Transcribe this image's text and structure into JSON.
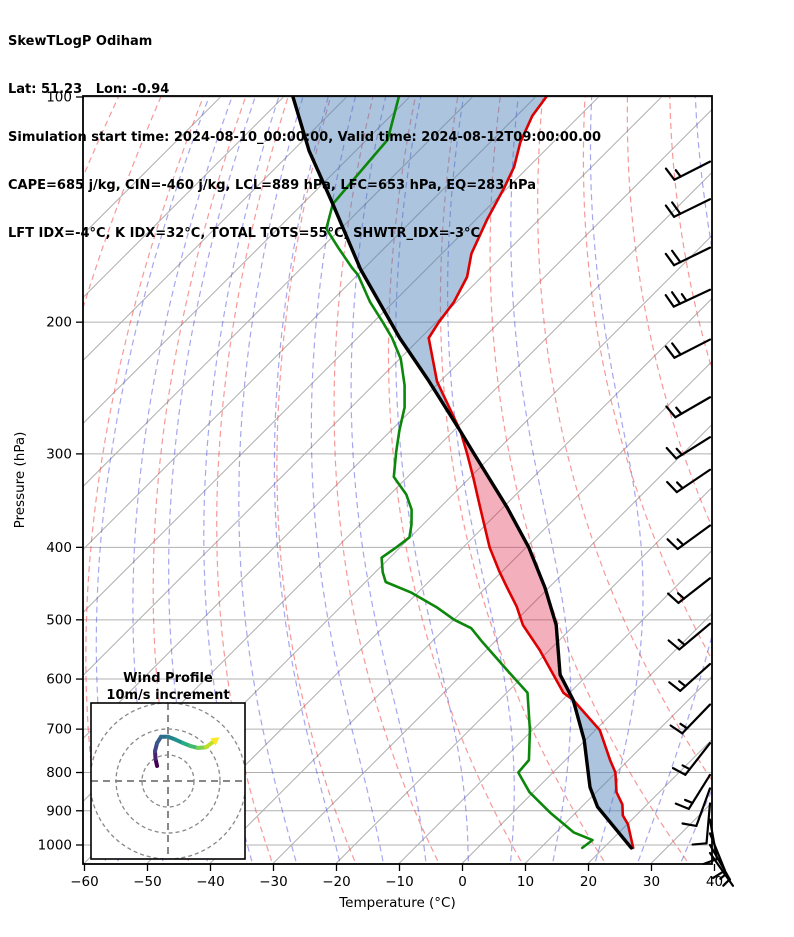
{
  "header": {
    "title": "SkewTLogP Odiham",
    "location_line": "Lat: 51.23   Lon: -0.94",
    "time_line": "Simulation start time: 2024-08-10_00:00:00, Valid time: 2024-08-12T09:00:00.00",
    "cape_line": "CAPE=685 j/kg, CIN=-460 j/kg, LCL=889 hPa, LFC=653 hPa, EQ=283 hPa",
    "indices_line": "LFT IDX=-4°C, K IDX=32°C, TOTAL TOTS=55°C, SHWTR_IDX=-3°C"
  },
  "chart_data": {
    "type": "skewt-logp",
    "title": "SkewTLogP Odiham",
    "location": {
      "lat": 51.23,
      "lon": -0.94
    },
    "times": {
      "simulation_start": "2024-08-10_00:00:00",
      "valid": "2024-08-12T09:00:00.00"
    },
    "indices": {
      "CAPE_j_kg": 685,
      "CIN_j_kg": -460,
      "LCL_hPa": 889,
      "LFC_hPa": 653,
      "EQ_hPa": 283,
      "LFT_IDX_C": -4,
      "K_IDX_C": 32,
      "TOTAL_TOTS_C": 55,
      "SHWTR_IDX_C": -3
    },
    "axes": {
      "xlabel": "Temperature (°C)",
      "ylabel": "Pressure (hPa)",
      "x_range": [
        -60,
        40
      ],
      "x_tick_values": [
        -60,
        -50,
        -40,
        -30,
        -20,
        -10,
        0,
        10,
        20,
        30,
        40
      ],
      "x_tick_labels": [
        "−60",
        "−50",
        "−40",
        "−30",
        "−20",
        "−10",
        "0",
        "10",
        "20",
        "30",
        "40"
      ],
      "p_ticks": [
        100,
        200,
        300,
        400,
        500,
        600,
        700,
        800,
        900,
        1000
      ],
      "p_range": [
        100,
        1057
      ],
      "scale": "log-pressure with 45-degree skewed isotherms"
    },
    "profiles": {
      "units": {
        "pressure": "hPa",
        "temperature": "°C"
      },
      "temperature": [
        [
          100,
          -108.3
        ],
        [
          106,
          -107.5
        ],
        [
          115,
          -105.2
        ],
        [
          124,
          -102.3
        ],
        [
          132,
          -100.6
        ],
        [
          146,
          -98.2
        ],
        [
          162,
          -95.3
        ],
        [
          174,
          -92.3
        ],
        [
          188,
          -90.4
        ],
        [
          200,
          -89.6
        ],
        [
          210,
          -88.7
        ],
        [
          240,
          -80.5
        ],
        [
          280,
          -68.8
        ],
        [
          300,
          -64.2
        ],
        [
          323,
          -59.4
        ],
        [
          354,
          -53.6
        ],
        [
          400,
          -45.8
        ],
        [
          431,
          -40.4
        ],
        [
          453,
          -36.6
        ],
        [
          480,
          -32.1
        ],
        [
          508,
          -28.2
        ],
        [
          549,
          -21.5
        ],
        [
          626,
          -11.0
        ],
        [
          640,
          -8.3
        ],
        [
          702,
          0.7
        ],
        [
          770,
          7.1
        ],
        [
          800,
          9.9
        ],
        [
          850,
          13.2
        ],
        [
          883,
          16.1
        ],
        [
          913,
          17.9
        ],
        [
          938,
          20.1
        ],
        [
          1009,
          24.7
        ]
      ],
      "dewpoint": [
        [
          100,
          -131.7
        ],
        [
          114,
          -126.7
        ],
        [
          139,
          -125.2
        ],
        [
          150,
          -122.3
        ],
        [
          159,
          -117.4
        ],
        [
          169,
          -112.1
        ],
        [
          173,
          -109.9
        ],
        [
          188,
          -103.7
        ],
        [
          200,
          -98.5
        ],
        [
          210,
          -94.5
        ],
        [
          224,
          -89.8
        ],
        [
          243,
          -85.0
        ],
        [
          260,
          -81.5
        ],
        [
          279,
          -78.7
        ],
        [
          298,
          -75.8
        ],
        [
          322,
          -72.2
        ],
        [
          340,
          -67.4
        ],
        [
          356,
          -64.2
        ],
        [
          373,
          -61.8
        ],
        [
          388,
          -60.1
        ],
        [
          400,
          -60.6
        ],
        [
          413,
          -61.3
        ],
        [
          432,
          -58.8
        ],
        [
          445,
          -56.8
        ],
        [
          460,
          -51.0
        ],
        [
          481,
          -44.7
        ],
        [
          500,
          -39.9
        ],
        [
          513,
          -35.9
        ],
        [
          536,
          -31.8
        ],
        [
          590,
          -22.5
        ],
        [
          626,
          -16.7
        ],
        [
          702,
          -10.4
        ],
        [
          770,
          -5.8
        ],
        [
          800,
          -5.5
        ],
        [
          850,
          -0.6
        ],
        [
          905,
          5.9
        ],
        [
          962,
          12.8
        ],
        [
          985,
          17.0
        ],
        [
          1009,
          16.6
        ]
      ],
      "parcel": [
        [
          100,
          -148.5
        ],
        [
          118,
          -137.4
        ],
        [
          139,
          -125.2
        ],
        [
          170,
          -110.4
        ],
        [
          210,
          -93.3
        ],
        [
          239,
          -82.1
        ],
        [
          280,
          -68.8
        ],
        [
          300,
          -63.1
        ],
        [
          354,
          -49.3
        ],
        [
          400,
          -39.6
        ],
        [
          453,
          -30.6
        ],
        [
          508,
          -22.9
        ],
        [
          592,
          -14.4
        ],
        [
          640,
          -8.3
        ],
        [
          724,
          -0.2
        ],
        [
          837,
          8.2
        ],
        [
          889,
          12.5
        ],
        [
          1009,
          24.4
        ]
      ]
    },
    "fill_regions": [
      {
        "name": "negative-area-above-EQ",
        "p_range": [
          100,
          280
        ],
        "color": "rgba(70,125,180,0.45)"
      },
      {
        "name": "cape-area",
        "p_range": [
          280,
          640
        ],
        "color": "rgba(220,20,60,0.34)"
      },
      {
        "name": "cin-area",
        "p_range": [
          640,
          1009
        ],
        "color": "rgba(70,125,180,0.45)"
      }
    ],
    "background_lines": {
      "isotherms_step_c": 10,
      "dry_adiabats_theta_c": {
        "start": -112,
        "end": 213,
        "step": 13
      },
      "moist_adiabats_start_c": {
        "start": -58,
        "end": 40,
        "step": 7
      }
    },
    "colors": {
      "temperature": "#dd0000",
      "dewpoint": "#0c870c",
      "parcel": "#000000",
      "isotherm": "#b0b0b0",
      "pressure_grid": "#b0b0b0",
      "dry_adiabat": "#f04646",
      "moist_adiabat": "#5050dd",
      "axis_frame": "#000000"
    },
    "wind_barbs": {
      "units": "m/s",
      "full_barb_ms": 10,
      "half_barb_ms": 5,
      "levels_p_speed_dirfrom": [
        [
          122,
          15,
          243
        ],
        [
          137,
          20,
          244
        ],
        [
          159,
          20,
          244
        ],
        [
          181,
          25,
          245
        ],
        [
          211,
          20,
          243
        ],
        [
          252,
          15,
          240
        ],
        [
          285,
          15,
          238
        ],
        [
          315,
          15,
          236
        ],
        [
          374,
          15,
          234
        ],
        [
          440,
          15,
          232
        ],
        [
          506,
          15,
          230
        ],
        [
          573,
          15,
          228
        ],
        [
          649,
          15,
          224
        ],
        [
          731,
          15,
          218
        ],
        [
          806,
          15,
          212
        ],
        [
          840,
          10,
          200
        ],
        [
          880,
          10,
          185
        ],
        [
          925,
          10,
          170
        ],
        [
          965,
          10,
          158
        ],
        [
          1000,
          5,
          150
        ],
        [
          1025,
          5,
          145
        ]
      ]
    },
    "hodograph": {
      "title_line1": "Wind Profile",
      "title_line2": "10m/s increment",
      "ring_radii_ms": [
        10,
        20,
        30
      ],
      "trace_uv_ms": [
        [
          -4.2,
          5.8
        ],
        [
          -4.8,
          8.5
        ],
        [
          -5,
          11.5
        ],
        [
          -4.2,
          14.6
        ],
        [
          -2.7,
          17
        ],
        [
          0,
          17
        ],
        [
          2.7,
          16
        ],
        [
          5.8,
          14.6
        ],
        [
          8.5,
          13.5
        ],
        [
          11.5,
          12.7
        ],
        [
          14.6,
          13
        ],
        [
          17.3,
          15
        ]
      ],
      "trace_colors": [
        "#440154",
        "#46236e",
        "#404688",
        "#375b8d",
        "#2e6d8e",
        "#27808e",
        "#21918c",
        "#27ad81",
        "#42bb72",
        "#7ad151",
        "#bddf26"
      ],
      "arrow_color": "#fde725",
      "grid_color": "#888888"
    }
  }
}
